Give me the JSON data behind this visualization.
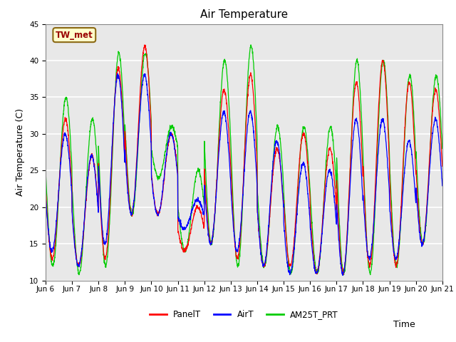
{
  "title": "Air Temperature",
  "xlabel": "Time",
  "ylabel": "Air Temperature (C)",
  "ylim": [
    10,
    45
  ],
  "station_label": "TW_met",
  "legend_entries": [
    "PanelT",
    "AirT",
    "AM25T_PRT"
  ],
  "line_colors": [
    "red",
    "blue",
    "#00cc00"
  ],
  "background_color": "#e8e8e8",
  "grid_color": "white",
  "x_tick_labels": [
    "Jun 6",
    "Jun 7",
    "Jun 8",
    "Jun 9",
    "Jun 10",
    "Jun 11",
    "Jun 12",
    "Jun 13",
    "Jun 14",
    "Jun 15",
    "Jun 16",
    "Jun 17",
    "Jun 18",
    "Jun 19",
    "Jun 20",
    "Jun 21"
  ],
  "title_fontsize": 11,
  "axis_label_fontsize": 9,
  "tick_fontsize": 7.5,
  "daily_max_panel": [
    32,
    27,
    39,
    42,
    30,
    20,
    36,
    38,
    28,
    30,
    28,
    37,
    40,
    37,
    36
  ],
  "daily_min_panel": [
    13,
    12,
    13,
    19,
    19,
    14,
    15,
    13,
    12,
    12,
    11,
    11,
    12,
    12,
    15
  ],
  "daily_max_air": [
    30,
    27,
    38,
    38,
    30,
    21,
    33,
    33,
    29,
    26,
    25,
    32,
    32,
    29,
    32
  ],
  "daily_min_air": [
    14,
    12,
    15,
    19,
    19,
    17,
    15,
    14,
    12,
    11,
    11,
    11,
    13,
    13,
    15
  ],
  "daily_max_am25": [
    35,
    32,
    41,
    41,
    31,
    25,
    40,
    42,
    31,
    31,
    31,
    40,
    40,
    38,
    38
  ],
  "daily_min_am25": [
    12,
    11,
    12,
    19,
    24,
    14,
    15,
    12,
    12,
    11,
    11,
    11,
    11,
    12,
    15
  ]
}
